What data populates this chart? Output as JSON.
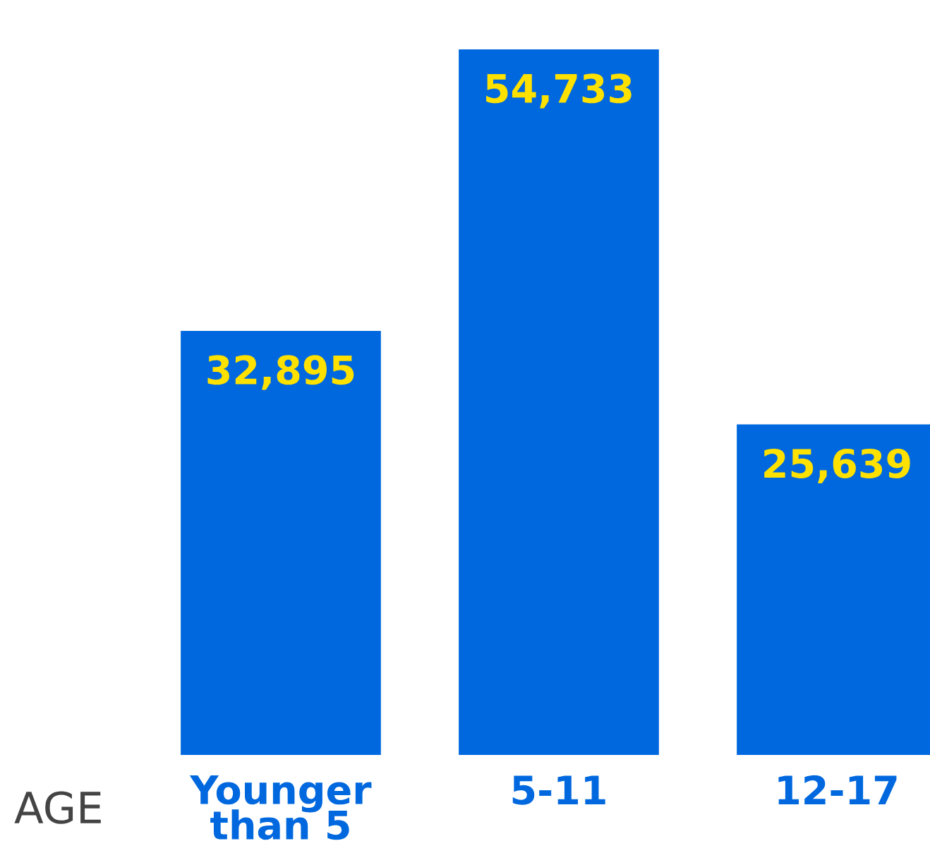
{
  "chart_data": {
    "type": "bar",
    "xlabel": "AGE",
    "categories": [
      "Younger\nthan 5",
      "5-11",
      "12-17"
    ],
    "values": [
      32895,
      54733,
      25639
    ],
    "color": "#0068de",
    "data_labels": true,
    "value_labels": [
      "32,895",
      "54,733",
      "25,639"
    ],
    "tick_labels": "x",
    "grid": false
  }
}
